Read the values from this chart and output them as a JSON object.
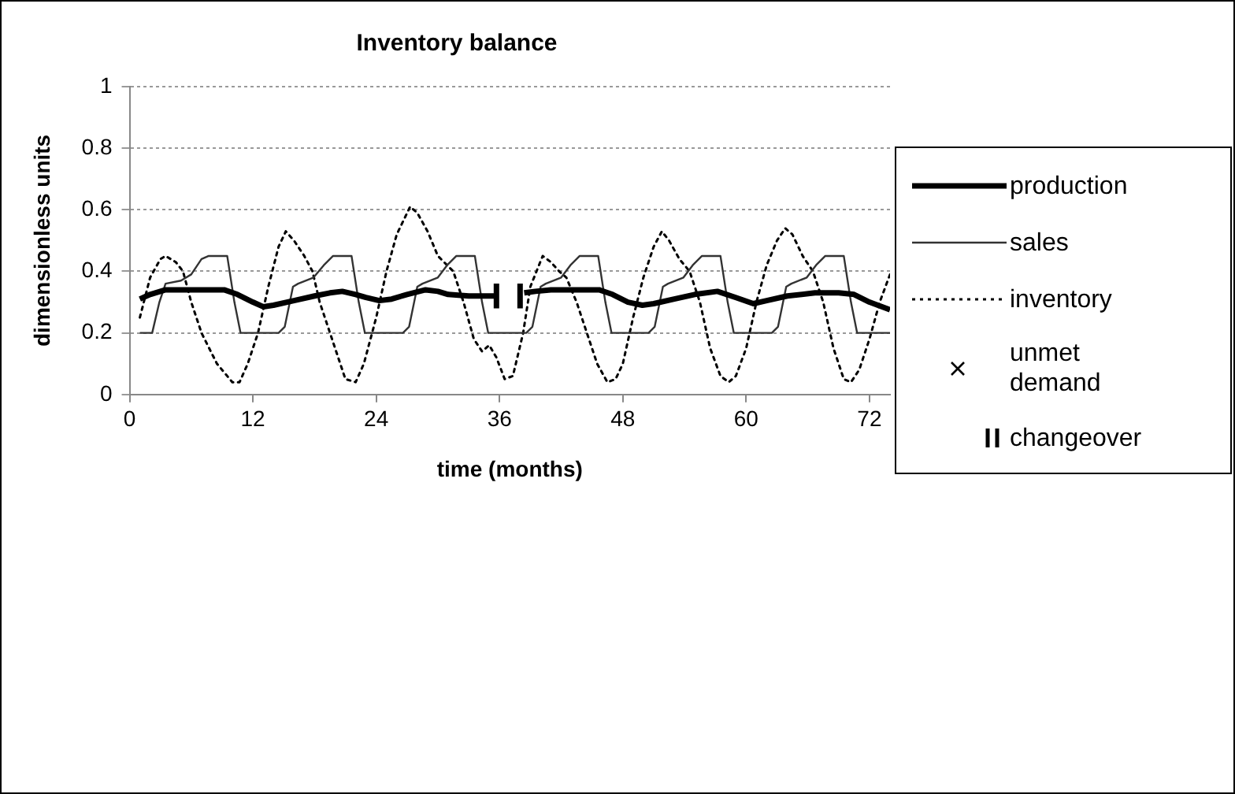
{
  "chart_data": {
    "type": "line",
    "title": "Inventory balance",
    "xlabel": "time (months)",
    "ylabel": "dimensionless units",
    "xlim": [
      0,
      74
    ],
    "xticks": [
      0,
      12,
      24,
      36,
      48,
      60,
      72
    ],
    "ylim": [
      0,
      1
    ],
    "yticks": [
      0,
      0.2,
      0.4,
      0.6,
      0.8,
      1
    ],
    "grid": "y",
    "legend": "right",
    "series": [
      {
        "name": "production",
        "color": "#000000",
        "line_style": "solid",
        "x": [
          1,
          2,
          3,
          3.5,
          9.2,
          10.5,
          12,
          13,
          14,
          16,
          18,
          19.5,
          20.7,
          22,
          23,
          24.3,
          25.5,
          27,
          28.8,
          30,
          31,
          33,
          34.5,
          35.5,
          null,
          38.4,
          39.5,
          41,
          45.7,
          47,
          48.5,
          49.9,
          51,
          53,
          55,
          57.2,
          59,
          60.7,
          62,
          64,
          66.7,
          69,
          70.5,
          72,
          74
        ],
        "values": [
          0.31,
          0.325,
          0.335,
          0.34,
          0.34,
          0.325,
          0.3,
          0.285,
          0.29,
          0.305,
          0.32,
          0.33,
          0.335,
          0.325,
          0.315,
          0.305,
          0.31,
          0.325,
          0.34,
          0.335,
          0.325,
          0.32,
          0.32,
          0.32,
          null,
          0.33,
          0.335,
          0.34,
          0.34,
          0.325,
          0.3,
          0.29,
          0.295,
          0.31,
          0.325,
          0.335,
          0.315,
          0.295,
          0.305,
          0.32,
          0.33,
          0.33,
          0.325,
          0.3,
          0.275
        ]
      },
      {
        "name": "sales",
        "color": "#333333",
        "line_style": "solid",
        "x": [
          1,
          2.2,
          2.9,
          3.5,
          5,
          6,
          7,
          7.7,
          9.5,
          10.2,
          10.8,
          14.5,
          15.1,
          15.9,
          16.4,
          17.9,
          18.9,
          19.8,
          21.6,
          22.3,
          22.9,
          26.6,
          27.2,
          28,
          28.5,
          30,
          30.9,
          31.8,
          33.6,
          34.3,
          34.9,
          38.6,
          39.2,
          40,
          40.5,
          42,
          42.9,
          43.8,
          45.6,
          46.3,
          46.9,
          50.5,
          51.1,
          51.9,
          52.4,
          53.9,
          54.8,
          55.7,
          57.5,
          58.2,
          58.8,
          62.5,
          63.1,
          63.9,
          64.4,
          65.9,
          66.8,
          67.7,
          69.5,
          70.2,
          70.8,
          74
        ],
        "values": [
          0.2,
          0.2,
          0.3,
          0.36,
          0.37,
          0.39,
          0.44,
          0.45,
          0.45,
          0.3,
          0.2,
          0.2,
          0.22,
          0.35,
          0.36,
          0.38,
          0.42,
          0.45,
          0.45,
          0.3,
          0.2,
          0.2,
          0.22,
          0.35,
          0.36,
          0.38,
          0.42,
          0.45,
          0.45,
          0.3,
          0.2,
          0.2,
          0.22,
          0.35,
          0.36,
          0.38,
          0.42,
          0.45,
          0.45,
          0.3,
          0.2,
          0.2,
          0.22,
          0.35,
          0.36,
          0.38,
          0.42,
          0.45,
          0.45,
          0.3,
          0.2,
          0.2,
          0.22,
          0.35,
          0.36,
          0.38,
          0.42,
          0.45,
          0.45,
          0.3,
          0.2,
          0.2
        ]
      },
      {
        "name": "inventory",
        "color": "#000000",
        "line_style": "dotted",
        "x": [
          1,
          2,
          3,
          3.5,
          4.5,
          5.2,
          6,
          7,
          8.5,
          10,
          10.7,
          11.5,
          12.5,
          13.5,
          14.5,
          15.2,
          16,
          17,
          17.8,
          18.5,
          19.5,
          21,
          22,
          22.8,
          24,
          25,
          26,
          27.3,
          28,
          29,
          30,
          31.5,
          32.5,
          33.5,
          34.3,
          35,
          35.7,
          36.5,
          37.3,
          38.3,
          39,
          40.2,
          41,
          41.8,
          42.5,
          43.5,
          44.5,
          45.5,
          46.5,
          47.3,
          48,
          49,
          50,
          51,
          51.8,
          52.5,
          53.5,
          54.5,
          55.5,
          56.5,
          57.5,
          58.3,
          59,
          60,
          61,
          62,
          63,
          63.8,
          64.5,
          65.5,
          66.5,
          67.5,
          68.5,
          69.5,
          70.2,
          71,
          72,
          73,
          74
        ],
        "values": [
          0.25,
          0.38,
          0.44,
          0.45,
          0.43,
          0.4,
          0.3,
          0.2,
          0.1,
          0.04,
          0.04,
          0.1,
          0.2,
          0.35,
          0.48,
          0.53,
          0.5,
          0.45,
          0.4,
          0.3,
          0.2,
          0.05,
          0.04,
          0.1,
          0.25,
          0.4,
          0.52,
          0.61,
          0.59,
          0.53,
          0.45,
          0.4,
          0.3,
          0.18,
          0.14,
          0.16,
          0.12,
          0.05,
          0.06,
          0.2,
          0.35,
          0.45,
          0.43,
          0.4,
          0.38,
          0.3,
          0.2,
          0.1,
          0.04,
          0.05,
          0.1,
          0.25,
          0.38,
          0.48,
          0.53,
          0.5,
          0.44,
          0.4,
          0.3,
          0.15,
          0.06,
          0.04,
          0.06,
          0.15,
          0.3,
          0.42,
          0.5,
          0.54,
          0.52,
          0.45,
          0.4,
          0.3,
          0.15,
          0.05,
          0.04,
          0.08,
          0.18,
          0.3,
          0.39
        ]
      },
      {
        "name": "unmet demand",
        "type": "scatter",
        "color": "#000000",
        "marker": "cross"
      },
      {
        "name": "changeover",
        "color": "#000000",
        "line_style": "solid",
        "x": [
          35.7,
          35.7,
          36.85,
          38,
          38
        ],
        "values": [
          0.28,
          0.36,
          null,
          0.28,
          0.36
        ]
      }
    ]
  }
}
